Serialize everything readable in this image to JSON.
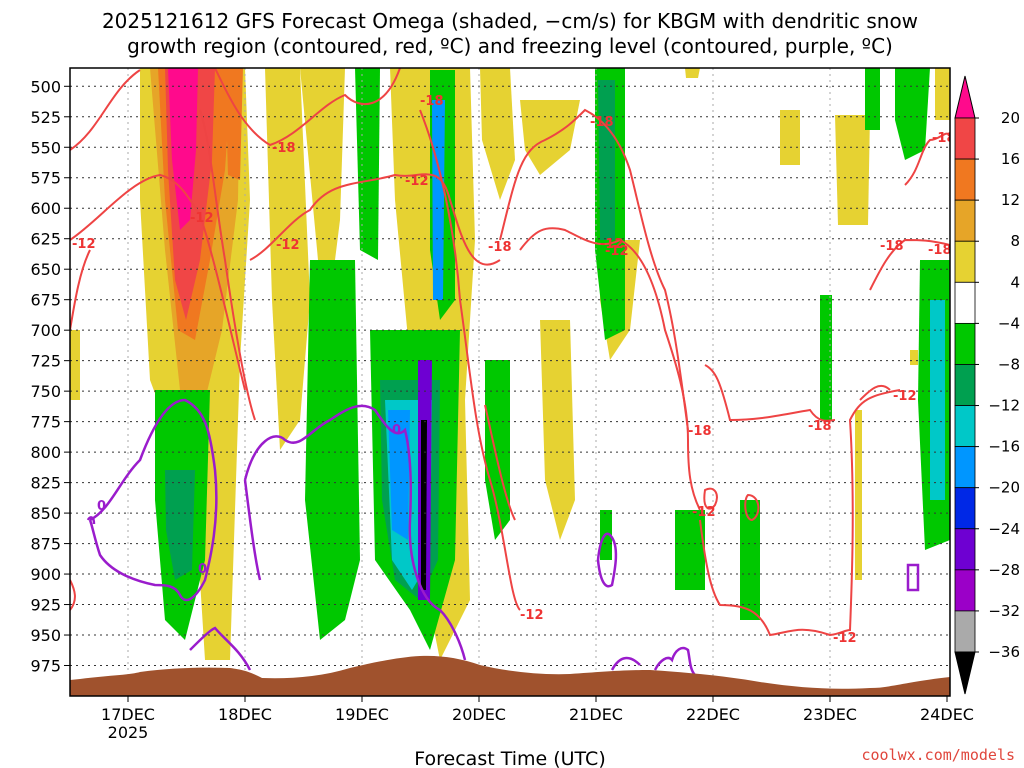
{
  "chart_data": {
    "type": "heatmap",
    "title_line1": "2025121612 GFS Forecast Omega (shaded, −cm/s) for KBGM with dendritic snow",
    "title_line2": "growth region (contoured, red, ºC) and freezing level (contoured, purple, ºC)",
    "xlabel": "Forecast Time (UTC)",
    "credit": "coolwx.com/models",
    "x_ticks": [
      "17DEC",
      "18DEC",
      "19DEC",
      "20DEC",
      "21DEC",
      "22DEC",
      "23DEC",
      "24DEC"
    ],
    "x_year": "2025",
    "y_ticks": [
      "500",
      "525",
      "550",
      "575",
      "600",
      "625",
      "650",
      "675",
      "700",
      "725",
      "750",
      "775",
      "800",
      "825",
      "850",
      "875",
      "900",
      "925",
      "950",
      "975"
    ],
    "ylim": [
      1000,
      485
    ],
    "colorbar_ticks": [
      "20",
      "16",
      "12",
      "8",
      "4",
      "−4",
      "−8",
      "−12",
      "−16",
      "−20",
      "−24",
      "−28",
      "−32",
      "−36"
    ],
    "colorbar_colors": [
      "#ff0a8c",
      "#f04646",
      "#f07820",
      "#e6a528",
      "#e6d232",
      "#ffffff",
      "#00c800",
      "#00a050",
      "#00c8c8",
      "#0096ff",
      "#0028e6",
      "#6e00d2",
      "#9b00c8",
      "#aaaaaa",
      "#000000"
    ],
    "contour_labels_red": [
      "-18",
      "-12",
      "-18",
      "-12",
      "-18",
      "-12",
      "-18",
      "-12",
      "-18",
      "-12",
      "-18",
      "-18",
      "-12",
      "-18",
      "-12",
      "-12",
      "-18",
      "-12",
      "-12"
    ],
    "contour_labels_purple": [
      "0",
      "0",
      "0"
    ],
    "legend": "colorbar-right"
  }
}
